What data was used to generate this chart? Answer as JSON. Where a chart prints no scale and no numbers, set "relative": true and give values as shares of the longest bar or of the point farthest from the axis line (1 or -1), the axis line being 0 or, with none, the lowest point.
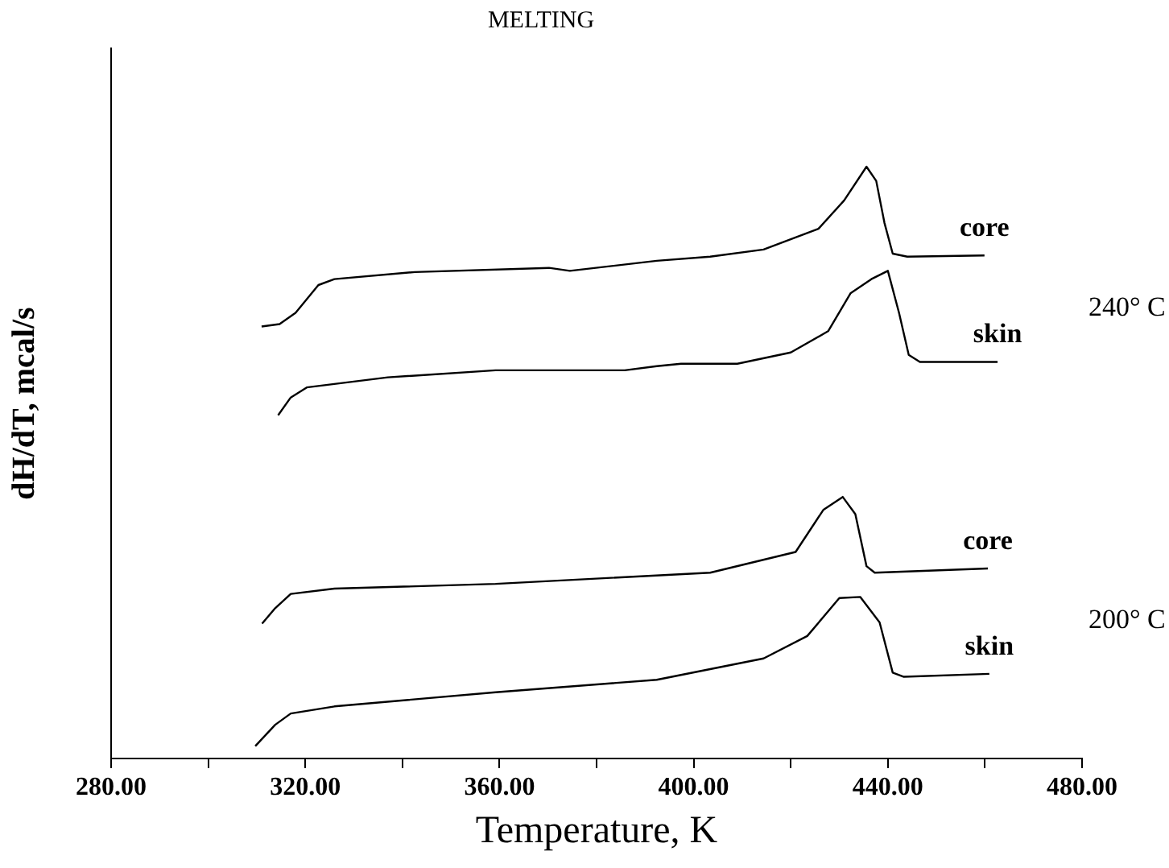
{
  "chart_data": {
    "type": "line",
    "title": "MELTING",
    "xlabel": "Temperature, K",
    "ylabel": "dH/dT, mcal/s",
    "relative": true,
    "legend": false,
    "grid": false,
    "marker": "none",
    "line_style": "solid",
    "xlim": [
      280,
      480
    ],
    "xticks": [
      {
        "value": 280,
        "label": "280.00"
      },
      {
        "value": 300,
        "label": null
      },
      {
        "value": 320,
        "label": "320.00"
      },
      {
        "value": 340,
        "label": null
      },
      {
        "value": 360,
        "label": "360.00"
      },
      {
        "value": 380,
        "label": null
      },
      {
        "value": 400,
        "label": "400.00"
      },
      {
        "value": 420,
        "label": null
      },
      {
        "value": 440,
        "label": "440.00"
      },
      {
        "value": 460,
        "label": null
      },
      {
        "value": 480,
        "label": "480.00"
      }
    ],
    "series": [
      {
        "name": "core",
        "color": "#000000",
        "x": [
          311.0,
          314.7,
          318.0,
          322.7,
          326.0,
          342.6,
          370.2,
          374.5,
          392.4,
          403.4,
          414.4,
          425.7,
          431.0,
          435.6,
          437.6,
          439.3,
          441.0,
          444.0,
          459.9
        ],
        "values": [
          0.73,
          0.734,
          0.753,
          0.8,
          0.81,
          0.822,
          0.829,
          0.824,
          0.841,
          0.848,
          0.86,
          0.895,
          0.943,
          1,
          0.976,
          0.905,
          0.853,
          0.848,
          0.85
        ]
      },
      {
        "name": "skin",
        "color": "#000000",
        "x": [
          314.4,
          317.0,
          320.3,
          337.0,
          359.2,
          385.8,
          392.4,
          397.4,
          409.0,
          420.0,
          427.7,
          432.3,
          436.6,
          440.0,
          442.3,
          444.3,
          446.6,
          462.6
        ],
        "values": [
          0.58,
          0.61,
          0.627,
          0.644,
          0.656,
          0.656,
          0.663,
          0.667,
          0.667,
          0.686,
          0.722,
          0.786,
          0.81,
          0.824,
          0.753,
          0.682,
          0.67,
          0.67
        ]
      },
      {
        "name": "core",
        "color": "#000000",
        "x": [
          311.1,
          313.8,
          317.0,
          326.0,
          359.2,
          403.4,
          421.0,
          426.7,
          430.7,
          433.3,
          435.6,
          437.3,
          460.6
        ],
        "values": [
          0.228,
          0.254,
          0.278,
          0.287,
          0.295,
          0.314,
          0.349,
          0.42,
          0.442,
          0.413,
          0.325,
          0.314,
          0.321
        ]
      },
      {
        "name": "skin",
        "color": "#000000",
        "x": [
          309.7,
          313.8,
          317.0,
          326.0,
          359.2,
          392.4,
          414.4,
          423.4,
          430.0,
          434.3,
          438.3,
          441.0,
          443.3,
          460.9
        ],
        "values": [
          0.021,
          0.057,
          0.076,
          0.088,
          0.112,
          0.133,
          0.169,
          0.207,
          0.271,
          0.273,
          0.23,
          0.145,
          0.138,
          0.143
        ]
      }
    ],
    "annotations": [
      "240° C",
      "200° C"
    ]
  }
}
